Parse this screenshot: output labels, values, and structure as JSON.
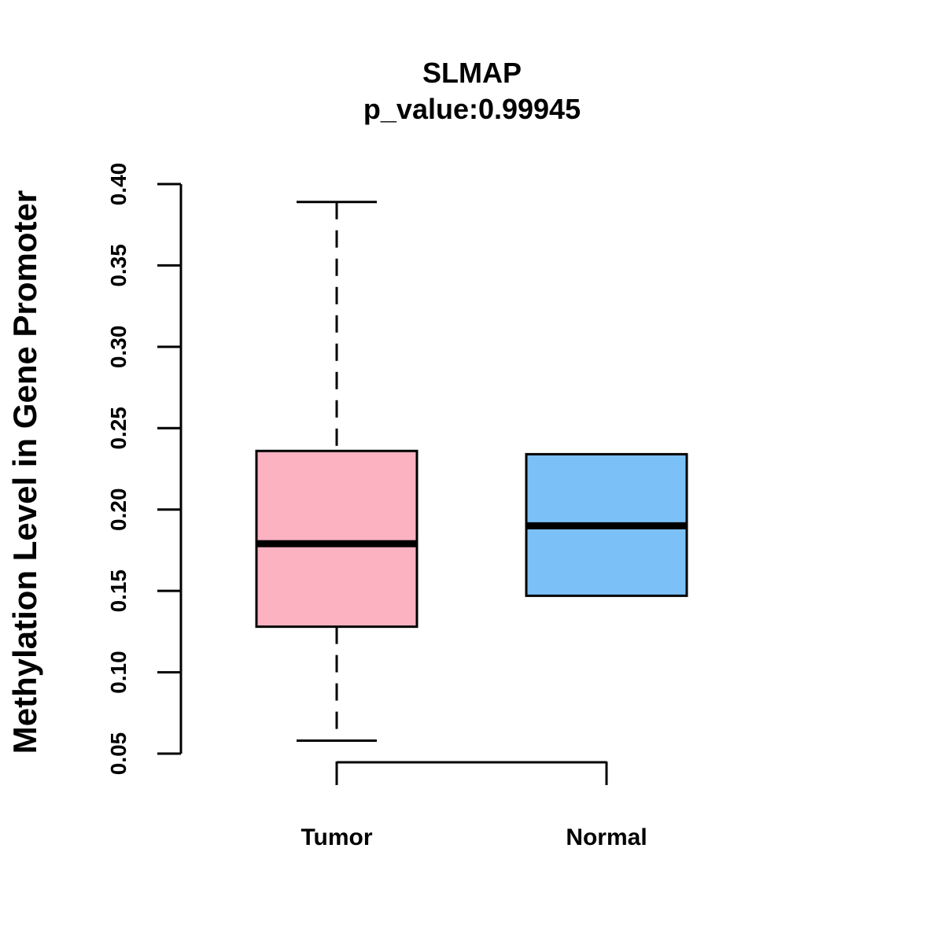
{
  "chart_data": {
    "type": "boxplot",
    "title": "SLMAP",
    "subtitle": "p_value:0.99945",
    "ylabel": "Methylation Level in Gene Promoter",
    "xlabel": "",
    "ylim": [
      0.05,
      0.4
    ],
    "yticks": [
      "0.05",
      "0.10",
      "0.15",
      "0.20",
      "0.25",
      "0.30",
      "0.35",
      "0.40"
    ],
    "ytick_values": [
      0.05,
      0.1,
      0.15,
      0.2,
      0.25,
      0.3,
      0.35,
      0.4
    ],
    "categories": [
      "Tumor",
      "Normal"
    ],
    "boxes": [
      {
        "name": "Tumor",
        "color": "#FDB2C2",
        "whisker_low": 0.058,
        "q1": 0.128,
        "median": 0.179,
        "q3": 0.236,
        "whisker_high": 0.389
      },
      {
        "name": "Normal",
        "color": "#7BC1F8",
        "whisker_low": 0.147,
        "q1": 0.147,
        "median": 0.19,
        "q3": 0.234,
        "whisker_high": 0.234
      }
    ],
    "grid": false,
    "legend": "none"
  }
}
